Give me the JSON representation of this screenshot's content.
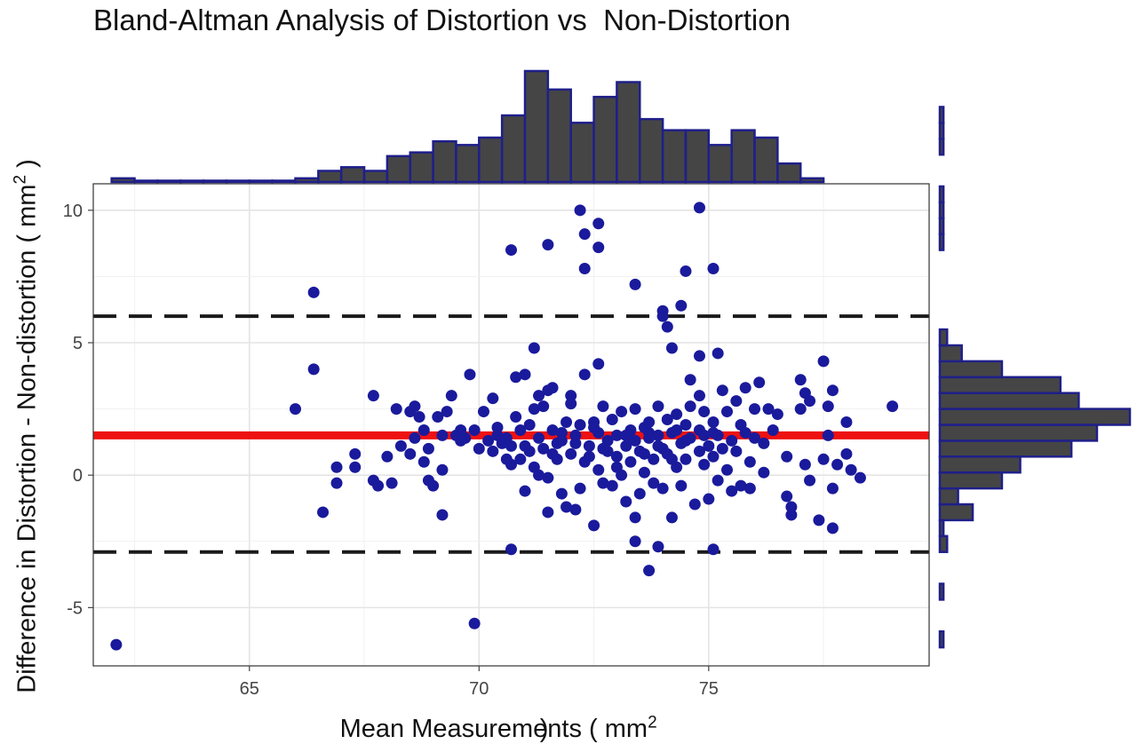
{
  "chart_data": {
    "type": "scatter",
    "title": "Bland-Altman Analysis of Distortion vs  Non-Distortion",
    "xlabel_main": "Mean Measurements ( mm",
    "xlabel_sup": "2",
    "xlabel_end": " )",
    "ylabel_main": "Difference in Distortion - Non-distortion ( mm",
    "ylabel_sup": "2",
    "ylabel_end": " )",
    "xlim": [
      61.6,
      79.8
    ],
    "ylim": [
      -7.2,
      11
    ],
    "x_ticks": [
      65,
      70,
      75
    ],
    "y_ticks": [
      10,
      5,
      0,
      -5
    ],
    "grid": true,
    "point_color": "#1a1a9c",
    "mean_line": {
      "value": 1.5,
      "color": "#ee1111"
    },
    "limits_of_agreement": [
      6.0,
      -2.9
    ],
    "points": [
      [
        62.1,
        -6.4
      ],
      [
        69.9,
        -5.6
      ],
      [
        66.4,
        6.9
      ],
      [
        66.4,
        4.0
      ],
      [
        66.0,
        2.5
      ],
      [
        66.6,
        -1.4
      ],
      [
        66.9,
        0.3
      ],
      [
        66.9,
        -0.3
      ],
      [
        67.3,
        0.8
      ],
      [
        67.3,
        0.3
      ],
      [
        67.7,
        3.0
      ],
      [
        67.7,
        -0.2
      ],
      [
        67.8,
        -0.4
      ],
      [
        68.0,
        0.7
      ],
      [
        68.1,
        -0.3
      ],
      [
        68.2,
        2.5
      ],
      [
        68.3,
        1.1
      ],
      [
        68.5,
        2.4
      ],
      [
        68.5,
        0.8
      ],
      [
        68.6,
        2.6
      ],
      [
        68.6,
        1.4
      ],
      [
        68.7,
        2.2
      ],
      [
        68.8,
        1.7
      ],
      [
        68.9,
        1.0
      ],
      [
        68.9,
        -0.2
      ],
      [
        69.0,
        -0.4
      ],
      [
        69.1,
        2.2
      ],
      [
        69.2,
        1.5
      ],
      [
        69.2,
        0.2
      ],
      [
        69.2,
        -1.5
      ],
      [
        69.3,
        2.4
      ],
      [
        69.4,
        3.0
      ],
      [
        69.5,
        1.5
      ],
      [
        69.6,
        1.7
      ],
      [
        69.7,
        1.4
      ],
      [
        69.8,
        3.8
      ],
      [
        69.9,
        1.7
      ],
      [
        70.0,
        1.0
      ],
      [
        70.1,
        2.4
      ],
      [
        70.2,
        1.3
      ],
      [
        70.3,
        0.9
      ],
      [
        70.3,
        2.9
      ],
      [
        70.4,
        1.5
      ],
      [
        70.5,
        1.2
      ],
      [
        70.6,
        1.4
      ],
      [
        70.7,
        1.1
      ],
      [
        70.7,
        0.4
      ],
      [
        70.8,
        2.2
      ],
      [
        70.8,
        3.7
      ],
      [
        70.9,
        1.7
      ],
      [
        70.9,
        0.6
      ],
      [
        71.0,
        3.8
      ],
      [
        71.0,
        -0.6
      ],
      [
        71.1,
        0.9
      ],
      [
        71.1,
        1.9
      ],
      [
        71.2,
        2.5
      ],
      [
        71.2,
        0.3
      ],
      [
        71.3,
        1.4
      ],
      [
        71.3,
        3.0
      ],
      [
        71.4,
        2.6
      ],
      [
        71.4,
        1.0
      ],
      [
        71.5,
        3.2
      ],
      [
        71.5,
        -0.1
      ],
      [
        71.6,
        1.7
      ],
      [
        71.6,
        3.3
      ],
      [
        71.7,
        1.2
      ],
      [
        71.7,
        0.6
      ],
      [
        71.8,
        1.3
      ],
      [
        71.8,
        -0.7
      ],
      [
        71.9,
        2.0
      ],
      [
        71.9,
        -1.2
      ],
      [
        72.0,
        3.0
      ],
      [
        72.0,
        2.7
      ],
      [
        72.0,
        0.8
      ],
      [
        72.1,
        1.5
      ],
      [
        72.1,
        -1.3
      ],
      [
        72.2,
        1.9
      ],
      [
        72.2,
        -0.5
      ],
      [
        72.3,
        3.8
      ],
      [
        72.3,
        0.5
      ],
      [
        72.4,
        1.1
      ],
      [
        72.5,
        2.0
      ],
      [
        72.5,
        -1.9
      ],
      [
        72.6,
        1.6
      ],
      [
        72.6,
        0.2
      ],
      [
        72.7,
        2.6
      ],
      [
        72.7,
        -0.3
      ],
      [
        72.8,
        1.3
      ],
      [
        72.8,
        0.9
      ],
      [
        72.9,
        2.1
      ],
      [
        72.9,
        -0.4
      ],
      [
        73.0,
        1.5
      ],
      [
        73.0,
        0.7
      ],
      [
        73.1,
        2.4
      ],
      [
        73.1,
        0.0
      ],
      [
        73.2,
        1.1
      ],
      [
        73.2,
        -1.0
      ],
      [
        73.3,
        1.7
      ],
      [
        73.3,
        0.5
      ],
      [
        73.4,
        2.5
      ],
      [
        73.4,
        1.3
      ],
      [
        73.5,
        0.9
      ],
      [
        73.5,
        -0.7
      ],
      [
        73.6,
        1.8
      ],
      [
        73.6,
        0.1
      ],
      [
        73.7,
        1.4
      ],
      [
        73.7,
        2.0
      ],
      [
        73.8,
        0.6
      ],
      [
        73.8,
        -0.3
      ],
      [
        73.9,
        1.5
      ],
      [
        73.9,
        2.6
      ],
      [
        74.0,
        1.0
      ],
      [
        74.0,
        -0.5
      ],
      [
        74.1,
        2.1
      ],
      [
        74.1,
        0.8
      ],
      [
        74.2,
        1.6
      ],
      [
        74.2,
        -1.6
      ],
      [
        74.3,
        2.3
      ],
      [
        74.3,
        0.3
      ],
      [
        74.4,
        1.2
      ],
      [
        74.4,
        -0.4
      ],
      [
        74.5,
        1.9
      ],
      [
        74.5,
        0.6
      ],
      [
        74.6,
        2.6
      ],
      [
        74.6,
        1.4
      ],
      [
        74.7,
        -1.1
      ],
      [
        74.8,
        1.7
      ],
      [
        74.8,
        3.0
      ],
      [
        74.9,
        0.4
      ],
      [
        74.9,
        2.4
      ],
      [
        75.0,
        1.1
      ],
      [
        75.0,
        -0.9
      ],
      [
        75.1,
        2.0
      ],
      [
        75.1,
        0.7
      ],
      [
        75.2,
        1.5
      ],
      [
        75.2,
        -0.2
      ],
      [
        75.3,
        3.2
      ],
      [
        75.3,
        1.0
      ],
      [
        75.4,
        2.4
      ],
      [
        75.4,
        0.2
      ],
      [
        75.5,
        1.3
      ],
      [
        75.5,
        -0.6
      ],
      [
        75.6,
        2.8
      ],
      [
        75.6,
        0.9
      ],
      [
        75.7,
        1.9
      ],
      [
        75.7,
        -0.4
      ],
      [
        75.8,
        3.3
      ],
      [
        75.8,
        1.6
      ],
      [
        75.9,
        0.5
      ],
      [
        75.9,
        -0.5
      ],
      [
        76.0,
        2.5
      ],
      [
        76.0,
        1.4
      ],
      [
        76.1,
        3.5
      ],
      [
        76.2,
        1.2
      ],
      [
        76.2,
        0.1
      ],
      [
        76.3,
        2.5
      ],
      [
        76.4,
        1.7
      ],
      [
        76.5,
        2.3
      ],
      [
        76.7,
        0.7
      ],
      [
        76.7,
        -0.8
      ],
      [
        76.8,
        -1.2
      ],
      [
        76.8,
        -1.5
      ],
      [
        77.0,
        3.6
      ],
      [
        77.0,
        2.5
      ],
      [
        77.1,
        3.1
      ],
      [
        77.1,
        0.4
      ],
      [
        77.2,
        2.8
      ],
      [
        77.2,
        -0.2
      ],
      [
        77.4,
        -1.7
      ],
      [
        77.5,
        4.3
      ],
      [
        77.5,
        0.6
      ],
      [
        77.6,
        2.6
      ],
      [
        77.6,
        1.5
      ],
      [
        77.7,
        3.2
      ],
      [
        77.7,
        -0.5
      ],
      [
        77.7,
        -2.0
      ],
      [
        77.8,
        0.4
      ],
      [
        78.0,
        2.0
      ],
      [
        78.0,
        0.8
      ],
      [
        78.1,
        0.2
      ],
      [
        78.3,
        -0.1
      ],
      [
        79.0,
        2.6
      ],
      [
        68.8,
        0.5
      ],
      [
        70.6,
        0.6
      ],
      [
        71.0,
        1.1
      ],
      [
        71.3,
        0.0
      ],
      [
        71.6,
        0.8
      ],
      [
        72.1,
        1.2
      ],
      [
        72.4,
        0.7
      ],
      [
        72.7,
        1.0
      ],
      [
        73.0,
        0.3
      ],
      [
        73.3,
        1.4
      ],
      [
        73.6,
        0.8
      ],
      [
        73.9,
        1.1
      ],
      [
        74.2,
        0.6
      ],
      [
        74.5,
        1.3
      ],
      [
        74.8,
        0.9
      ],
      [
        75.1,
        1.6
      ],
      [
        71.8,
        1.6
      ],
      [
        72.5,
        1.8
      ],
      [
        73.2,
        1.5
      ],
      [
        73.7,
        1.6
      ],
      [
        74.3,
        1.7
      ],
      [
        74.9,
        1.5
      ],
      [
        70.4,
        1.8
      ],
      [
        69.6,
        1.3
      ],
      [
        70.7,
        -2.8
      ],
      [
        71.5,
        -1.4
      ],
      [
        73.4,
        -1.6
      ],
      [
        73.4,
        -2.5
      ],
      [
        73.7,
        -3.6
      ],
      [
        73.9,
        -2.7
      ],
      [
        75.1,
        -2.8
      ],
      [
        70.7,
        8.5
      ],
      [
        71.5,
        8.7
      ],
      [
        72.2,
        10.0
      ],
      [
        72.3,
        9.1
      ],
      [
        72.3,
        7.8
      ],
      [
        72.6,
        9.5
      ],
      [
        72.6,
        8.6
      ],
      [
        73.4,
        7.2
      ],
      [
        74.0,
        6.2
      ],
      [
        74.0,
        6.0
      ],
      [
        74.1,
        5.6
      ],
      [
        74.4,
        6.4
      ],
      [
        74.5,
        7.7
      ],
      [
        74.8,
        10.1
      ],
      [
        75.1,
        7.8
      ],
      [
        71.2,
        4.8
      ],
      [
        72.6,
        4.2
      ],
      [
        74.2,
        4.8
      ],
      [
        74.8,
        4.5
      ],
      [
        75.2,
        4.6
      ],
      [
        74.6,
        3.6
      ]
    ],
    "top_histogram": {
      "bin_start": 62.0,
      "bin_width": 0.5,
      "counts": [
        1,
        0,
        0,
        0,
        0,
        0,
        0,
        0,
        1,
        3,
        4,
        3,
        7,
        8,
        11,
        10,
        12,
        18,
        30,
        25,
        16,
        23,
        27,
        17,
        14,
        14,
        10,
        14,
        12,
        5,
        1
      ]
    },
    "right_histogram": {
      "bin_start": -6.5,
      "bin_width": 0.6,
      "counts": [
        1,
        0,
        0,
        1,
        0,
        0,
        2,
        1,
        9,
        5,
        17,
        22,
        36,
        43,
        52,
        38,
        33,
        17,
        6,
        2,
        0,
        0,
        0,
        0,
        0,
        1,
        1,
        1,
        1,
        0,
        0,
        1,
        1,
        1
      ]
    }
  }
}
